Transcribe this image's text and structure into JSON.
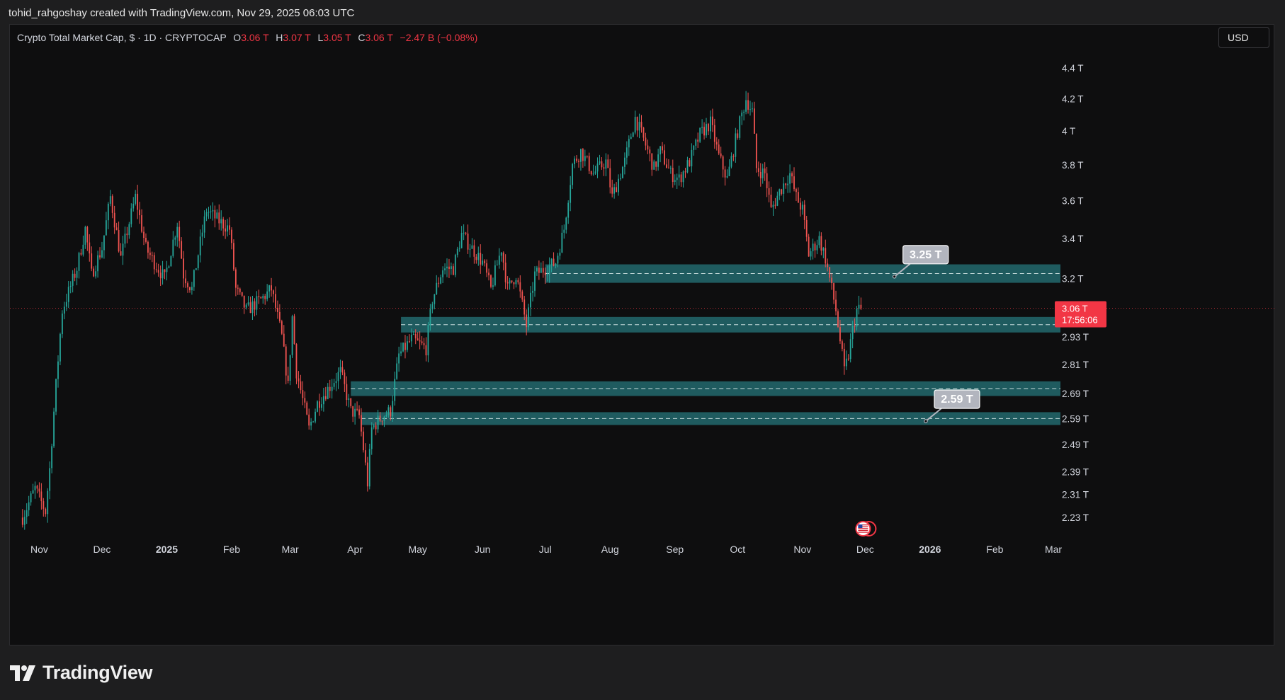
{
  "attribution": "tohid_rahgoshay created with TradingView.com, Nov 29, 2025 06:03 UTC",
  "legend": {
    "symbol": "Crypto Total Market Cap, $ · 1D · CRYPTOCAP",
    "o_label": "O",
    "o_value": "3.06 T",
    "h_label": "H",
    "h_value": "3.07 T",
    "l_label": "L",
    "l_value": "3.05 T",
    "c_label": "C",
    "c_value": "3.06 T",
    "change": "−2.47 B (−0.08%)"
  },
  "currency": "USD",
  "brand": "TradingView",
  "colors": {
    "up": "#26a69a",
    "down": "#ef5350",
    "zone": "#2a8a91",
    "price_badge": "#f23645",
    "callout": "#b2b5be",
    "grid_text": "#d1d4dc"
  },
  "chart_data": {
    "type": "candlestick",
    "y_scale": "log",
    "ylim": [
      2.16,
      4.52
    ],
    "y_ticks": [
      {
        "value": 4.4,
        "label": "4.4 T"
      },
      {
        "value": 4.2,
        "label": "4.2 T"
      },
      {
        "value": 4.0,
        "label": "4 T"
      },
      {
        "value": 3.8,
        "label": "3.8 T"
      },
      {
        "value": 3.6,
        "label": "3.6 T"
      },
      {
        "value": 3.4,
        "label": "3.4 T"
      },
      {
        "value": 3.2,
        "label": "3.2 T"
      },
      {
        "value": 2.93,
        "label": "2.93 T"
      },
      {
        "value": 2.81,
        "label": "2.81 T"
      },
      {
        "value": 2.69,
        "label": "2.69 T"
      },
      {
        "value": 2.59,
        "label": "2.59 T"
      },
      {
        "value": 2.49,
        "label": "2.49 T"
      },
      {
        "value": 2.39,
        "label": "2.39 T"
      },
      {
        "value": 2.31,
        "label": "2.31 T"
      },
      {
        "value": 2.23,
        "label": "2.23 T"
      }
    ],
    "xlim": [
      "2024-10-20",
      "2026-03-01"
    ],
    "x_ticks": [
      {
        "date": "2024-11-01",
        "label": "Nov",
        "bold": false
      },
      {
        "date": "2024-12-01",
        "label": "Dec",
        "bold": false
      },
      {
        "date": "2025-01-01",
        "label": "2025",
        "bold": true
      },
      {
        "date": "2025-02-01",
        "label": "Feb",
        "bold": false
      },
      {
        "date": "2025-03-01",
        "label": "Mar",
        "bold": false
      },
      {
        "date": "2025-04-01",
        "label": "Apr",
        "bold": false
      },
      {
        "date": "2025-05-01",
        "label": "May",
        "bold": false
      },
      {
        "date": "2025-06-01",
        "label": "Jun",
        "bold": false
      },
      {
        "date": "2025-07-01",
        "label": "Jul",
        "bold": false
      },
      {
        "date": "2025-08-01",
        "label": "Aug",
        "bold": false
      },
      {
        "date": "2025-09-01",
        "label": "Sep",
        "bold": false
      },
      {
        "date": "2025-10-01",
        "label": "Oct",
        "bold": false
      },
      {
        "date": "2025-11-01",
        "label": "Nov",
        "bold": false
      },
      {
        "date": "2025-12-01",
        "label": "Dec",
        "bold": false
      },
      {
        "date": "2026-01-01",
        "label": "2026",
        "bold": true
      },
      {
        "date": "2026-02-01",
        "label": "Feb",
        "bold": false
      },
      {
        "date": "2026-03-01",
        "label": "Mar",
        "bold": false
      }
    ],
    "series": {
      "start_date": "2024-10-24",
      "end_date": "2025-11-29",
      "anchors": [
        [
          "2024-10-24",
          2.23
        ],
        [
          "2024-10-30",
          2.33
        ],
        [
          "2024-11-04",
          2.25
        ],
        [
          "2024-11-06",
          2.4
        ],
        [
          "2024-11-12",
          3.05
        ],
        [
          "2024-11-19",
          3.25
        ],
        [
          "2024-11-23",
          3.45
        ],
        [
          "2024-11-26",
          3.22
        ],
        [
          "2024-12-01",
          3.35
        ],
        [
          "2024-12-05",
          3.62
        ],
        [
          "2024-12-10",
          3.3
        ],
        [
          "2024-12-17",
          3.62
        ],
        [
          "2024-12-22",
          3.35
        ],
        [
          "2024-12-26",
          3.28
        ],
        [
          "2024-12-31",
          3.2
        ],
        [
          "2025-01-06",
          3.48
        ],
        [
          "2025-01-09",
          3.22
        ],
        [
          "2025-01-13",
          3.15
        ],
        [
          "2025-01-20",
          3.55
        ],
        [
          "2025-01-25",
          3.5
        ],
        [
          "2025-01-31",
          3.45
        ],
        [
          "2025-02-03",
          3.15
        ],
        [
          "2025-02-08",
          3.05
        ],
        [
          "2025-02-15",
          3.1
        ],
        [
          "2025-02-20",
          3.15
        ],
        [
          "2025-02-25",
          2.93
        ],
        [
          "2025-02-28",
          2.72
        ],
        [
          "2025-03-02",
          3.02
        ],
        [
          "2025-03-04",
          2.78
        ],
        [
          "2025-03-10",
          2.55
        ],
        [
          "2025-03-14",
          2.65
        ],
        [
          "2025-03-20",
          2.72
        ],
        [
          "2025-03-25",
          2.78
        ],
        [
          "2025-03-30",
          2.62
        ],
        [
          "2025-04-03",
          2.6
        ],
        [
          "2025-04-07",
          2.35
        ],
        [
          "2025-04-09",
          2.55
        ],
        [
          "2025-04-14",
          2.6
        ],
        [
          "2025-04-18",
          2.62
        ],
        [
          "2025-04-22",
          2.85
        ],
        [
          "2025-04-28",
          2.92
        ],
        [
          "2025-05-05",
          2.88
        ],
        [
          "2025-05-08",
          3.1
        ],
        [
          "2025-05-13",
          3.25
        ],
        [
          "2025-05-18",
          3.25
        ],
        [
          "2025-05-22",
          3.42
        ],
        [
          "2025-05-27",
          3.35
        ],
        [
          "2025-06-01",
          3.28
        ],
        [
          "2025-06-05",
          3.15
        ],
        [
          "2025-06-10",
          3.35
        ],
        [
          "2025-06-13",
          3.15
        ],
        [
          "2025-06-17",
          3.22
        ],
        [
          "2025-06-22",
          2.98
        ],
        [
          "2025-06-26",
          3.22
        ],
        [
          "2025-07-01",
          3.25
        ],
        [
          "2025-07-06",
          3.28
        ],
        [
          "2025-07-10",
          3.45
        ],
        [
          "2025-07-14",
          3.8
        ],
        [
          "2025-07-18",
          3.88
        ],
        [
          "2025-07-24",
          3.75
        ],
        [
          "2025-07-30",
          3.82
        ],
        [
          "2025-08-02",
          3.62
        ],
        [
          "2025-08-08",
          3.82
        ],
        [
          "2025-08-13",
          4.08
        ],
        [
          "2025-08-17",
          3.95
        ],
        [
          "2025-08-22",
          3.78
        ],
        [
          "2025-08-25",
          3.88
        ],
        [
          "2025-08-30",
          3.75
        ],
        [
          "2025-09-03",
          3.72
        ],
        [
          "2025-09-08",
          3.82
        ],
        [
          "2025-09-13",
          3.98
        ],
        [
          "2025-09-18",
          4.05
        ],
        [
          "2025-09-22",
          3.85
        ],
        [
          "2025-09-26",
          3.72
        ],
        [
          "2025-10-01",
          4.0
        ],
        [
          "2025-10-05",
          4.2
        ],
        [
          "2025-10-08",
          4.12
        ],
        [
          "2025-10-10",
          3.78
        ],
        [
          "2025-10-14",
          3.75
        ],
        [
          "2025-10-17",
          3.55
        ],
        [
          "2025-10-21",
          3.65
        ],
        [
          "2025-10-26",
          3.75
        ],
        [
          "2025-10-29",
          3.62
        ],
        [
          "2025-11-01",
          3.55
        ],
        [
          "2025-11-04",
          3.32
        ],
        [
          "2025-11-09",
          3.4
        ],
        [
          "2025-11-12",
          3.3
        ],
        [
          "2025-11-15",
          3.15
        ],
        [
          "2025-11-17",
          3.05
        ],
        [
          "2025-11-21",
          2.78
        ],
        [
          "2025-11-23",
          2.85
        ],
        [
          "2025-11-25",
          2.96
        ],
        [
          "2025-11-27",
          3.05
        ],
        [
          "2025-11-29",
          3.06
        ]
      ]
    },
    "zones": [
      {
        "from": "2025-07-01",
        "low": 3.18,
        "high": 3.27,
        "mid": 3.225
      },
      {
        "from": "2025-04-23",
        "low": 2.95,
        "high": 3.02,
        "mid": 2.985
      },
      {
        "from": "2025-03-30",
        "low": 2.68,
        "high": 2.74,
        "mid": 2.71
      },
      {
        "from": "2025-04-04",
        "low": 2.565,
        "high": 2.615,
        "mid": 2.59
      }
    ],
    "callouts": [
      {
        "label": "3.25 T",
        "date": "2025-12-15",
        "value": 3.21
      },
      {
        "label": "2.59 T",
        "date": "2025-12-30",
        "value": 2.58
      }
    ],
    "last_price": {
      "value": 3.06,
      "label": "3.06 T",
      "countdown": "17:56:06"
    }
  }
}
